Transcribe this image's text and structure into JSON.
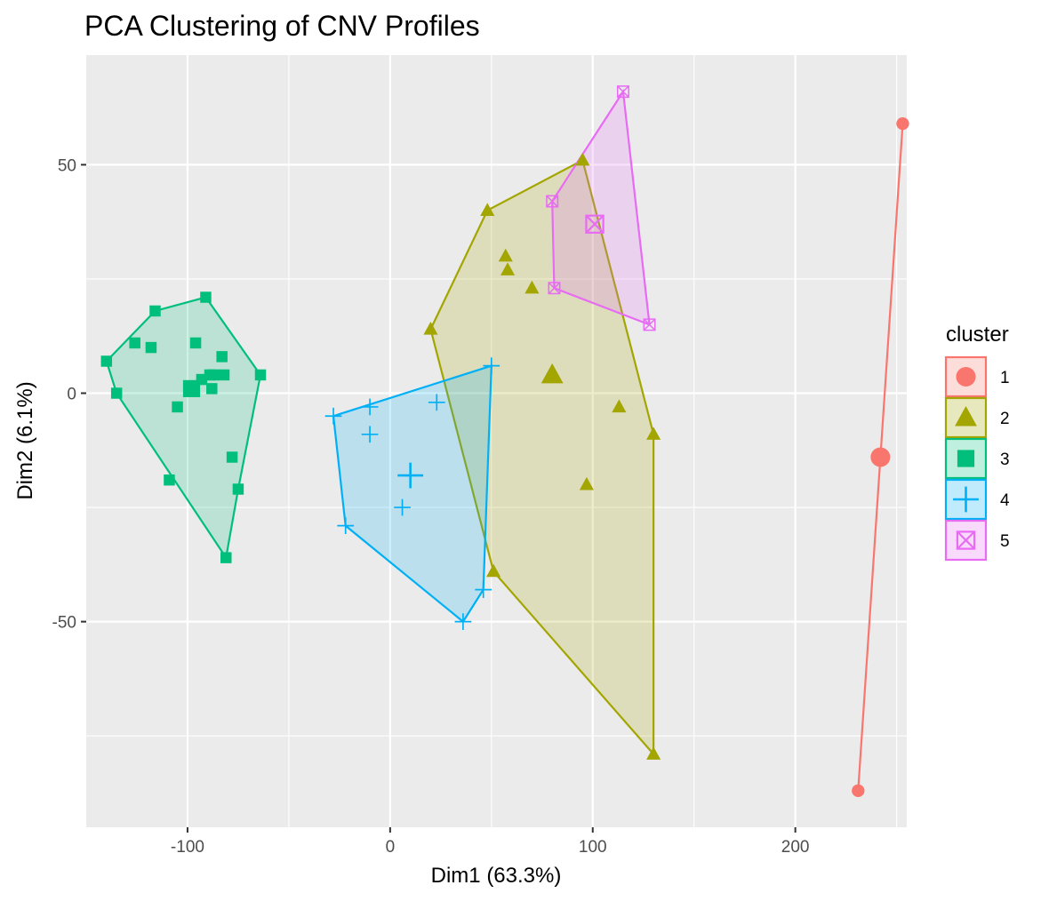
{
  "chart_data": {
    "type": "scatter",
    "title": "PCA Clustering of CNV Profiles",
    "xlabel": "Dim1 (63.3%)",
    "ylabel": "Dim2 (6.1%)",
    "xlim": [
      -150,
      255
    ],
    "ylim": [
      -95,
      74
    ],
    "x_ticks": [
      -100,
      0,
      100,
      200
    ],
    "y_ticks": [
      -50,
      0,
      50
    ],
    "x_tick_labels": [
      "-100",
      "0",
      "100",
      "200"
    ],
    "y_tick_labels": [
      "-50",
      "0",
      "50"
    ],
    "grid": true,
    "legend": {
      "title": "cluster",
      "position": "right"
    },
    "series": [
      {
        "name": "1",
        "color": "#F8766D",
        "shape": "circle",
        "points": [
          [
            253,
            59
          ],
          [
            231,
            -87
          ]
        ],
        "center": [
          242,
          -14
        ],
        "hull": [
          [
            253,
            59
          ],
          [
            231,
            -87
          ]
        ]
      },
      {
        "name": "2",
        "color": "#A3A500",
        "shape": "triangle",
        "points": [
          [
            48,
            40
          ],
          [
            95,
            51
          ],
          [
            57,
            30
          ],
          [
            58,
            27
          ],
          [
            70,
            23
          ],
          [
            20,
            14
          ],
          [
            113,
            -3
          ],
          [
            130,
            -9
          ],
          [
            97,
            -20
          ],
          [
            51,
            -39
          ],
          [
            130,
            -79
          ]
        ],
        "center": [
          80,
          4
        ],
        "hull": [
          [
            95,
            51
          ],
          [
            130,
            -9
          ],
          [
            130,
            -79
          ],
          [
            51,
            -39
          ],
          [
            20,
            14
          ],
          [
            48,
            40
          ]
        ]
      },
      {
        "name": "3",
        "color": "#00BF7D",
        "shape": "square",
        "points": [
          [
            -91,
            21
          ],
          [
            -116,
            18
          ],
          [
            -126,
            11
          ],
          [
            -118,
            10
          ],
          [
            -96,
            11
          ],
          [
            -83,
            8
          ],
          [
            -140,
            7
          ],
          [
            -64,
            4
          ],
          [
            -87,
            4
          ],
          [
            -89,
            4
          ],
          [
            -82,
            4
          ],
          [
            -93,
            3
          ],
          [
            -88,
            1
          ],
          [
            -135,
            0
          ],
          [
            -105,
            -3
          ],
          [
            -78,
            -14
          ],
          [
            -109,
            -19
          ],
          [
            -75,
            -21
          ],
          [
            -81,
            -36
          ]
        ],
        "center": [
          -98,
          1
        ],
        "hull": [
          [
            -91,
            21
          ],
          [
            -64,
            4
          ],
          [
            -75,
            -21
          ],
          [
            -81,
            -36
          ],
          [
            -135,
            0
          ],
          [
            -140,
            7
          ],
          [
            -116,
            18
          ]
        ]
      },
      {
        "name": "4",
        "color": "#00B0F6",
        "shape": "plus",
        "points": [
          [
            50,
            6
          ],
          [
            -10,
            -3
          ],
          [
            23,
            -2
          ],
          [
            -28,
            -5
          ],
          [
            -10,
            -9
          ],
          [
            -22,
            -29
          ],
          [
            6,
            -25
          ],
          [
            46,
            -43
          ],
          [
            36,
            -50
          ]
        ],
        "center": [
          10,
          -18
        ],
        "hull": [
          [
            50,
            6
          ],
          [
            46,
            -43
          ],
          [
            36,
            -50
          ],
          [
            -22,
            -29
          ],
          [
            -28,
            -5
          ]
        ]
      },
      {
        "name": "5",
        "color": "#E76BF3",
        "shape": "square-cross",
        "points": [
          [
            115,
            66
          ],
          [
            80,
            42
          ],
          [
            81,
            23
          ],
          [
            128,
            15
          ]
        ],
        "center": [
          101,
          37
        ],
        "hull": [
          [
            115,
            66
          ],
          [
            128,
            15
          ],
          [
            81,
            23
          ],
          [
            80,
            42
          ]
        ]
      }
    ]
  }
}
